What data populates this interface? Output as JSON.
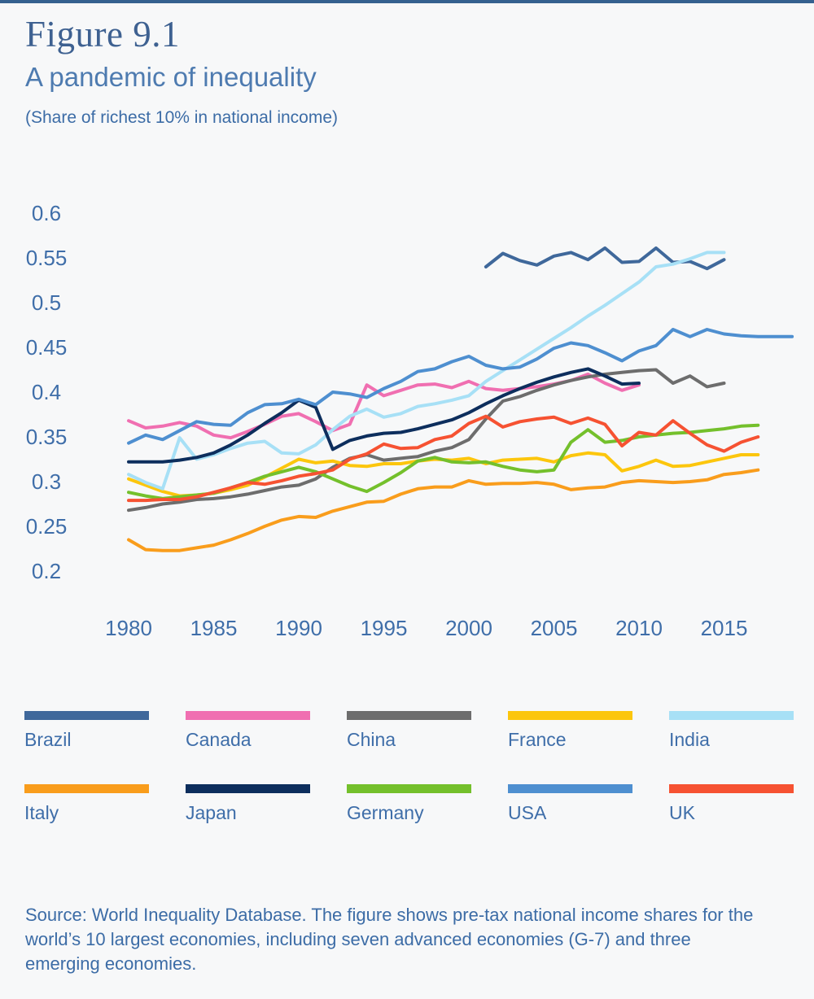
{
  "page": {
    "figure_label": "Figure 9.1",
    "title": "A pandemic of inequality",
    "subtitle": "(Share of richest 10% in national income)",
    "source_note": "Source: World Inequality Database. The figure shows pre-tax national income shares for the world’s 10 largest economies, including seven advanced economies (G-7) and three emerging economies.",
    "colors": {
      "accent_bar": "#35618f",
      "figure_label_text": "#3e6191",
      "title_text": "#4e7bb0",
      "body_text": "#3c6ca6",
      "background": "#f7f8f9"
    }
  },
  "chart_data": {
    "type": "line",
    "title": "A pandemic of inequality",
    "subtitle": "(Share of richest 10% in national income)",
    "xlabel": "",
    "ylabel": "",
    "x_ticks": [
      1980,
      1985,
      1990,
      1995,
      2000,
      2005,
      2010,
      2015
    ],
    "y_ticks": [
      0.2,
      0.25,
      0.3,
      0.35,
      0.4,
      0.45,
      0.5,
      0.55,
      0.6
    ],
    "xlim": [
      1978,
      2020
    ],
    "ylim": [
      0.2,
      0.6
    ],
    "grid": false,
    "legend_position": "bottom",
    "legend_columns": 5,
    "series": [
      {
        "name": "Brazil",
        "color": "#3f689b",
        "start_year": 2001,
        "values": [
          0.54,
          0.555,
          0.547,
          0.542,
          0.552,
          0.556,
          0.548,
          0.561,
          0.545,
          0.546,
          0.561,
          0.545,
          0.546,
          0.538,
          0.548
        ]
      },
      {
        "name": "Canada",
        "color": "#f06fb1",
        "start_year": 1980,
        "values": [
          0.368,
          0.36,
          0.362,
          0.366,
          0.362,
          0.352,
          0.349,
          0.356,
          0.364,
          0.373,
          0.376,
          0.367,
          0.357,
          0.364,
          0.408,
          0.396,
          0.402,
          0.408,
          0.409,
          0.405,
          0.412,
          0.404,
          0.402,
          0.404,
          0.406,
          0.409,
          0.413,
          0.42,
          0.41,
          0.402,
          0.408
        ]
      },
      {
        "name": "China",
        "color": "#6d6d6d",
        "start_year": 1980,
        "values": [
          0.268,
          0.271,
          0.275,
          0.277,
          0.28,
          0.281,
          0.283,
          0.286,
          0.29,
          0.294,
          0.296,
          0.303,
          0.316,
          0.326,
          0.33,
          0.324,
          0.326,
          0.328,
          0.334,
          0.338,
          0.347,
          0.37,
          0.39,
          0.395,
          0.402,
          0.408,
          0.413,
          0.417,
          0.42,
          0.422,
          0.424,
          0.425,
          0.41,
          0.418,
          0.406,
          0.41
        ]
      },
      {
        "name": "France",
        "color": "#fcc60d",
        "start_year": 1980,
        "values": [
          0.303,
          0.296,
          0.289,
          0.284,
          0.285,
          0.287,
          0.291,
          0.296,
          0.305,
          0.315,
          0.325,
          0.321,
          0.323,
          0.318,
          0.317,
          0.32,
          0.32,
          0.323,
          0.325,
          0.324,
          0.326,
          0.32,
          0.324,
          0.325,
          0.326,
          0.322,
          0.329,
          0.332,
          0.33,
          0.312,
          0.317,
          0.324,
          0.317,
          0.318,
          0.322,
          0.326,
          0.33,
          0.33
        ]
      },
      {
        "name": "India",
        "color": "#a7e0f6",
        "start_year": 1980,
        "values": [
          0.308,
          0.299,
          0.292,
          0.349,
          0.325,
          0.33,
          0.337,
          0.343,
          0.345,
          0.332,
          0.331,
          0.341,
          0.358,
          0.373,
          0.381,
          0.372,
          0.376,
          0.384,
          0.387,
          0.391,
          0.396,
          0.412,
          0.424,
          0.436,
          0.448,
          0.46,
          0.472,
          0.485,
          0.497,
          0.51,
          0.523,
          0.54,
          0.543,
          0.549,
          0.556,
          0.556
        ]
      },
      {
        "name": "Italy",
        "color": "#f99d1c",
        "start_year": 1980,
        "values": [
          0.235,
          0.224,
          0.223,
          0.223,
          0.226,
          0.229,
          0.235,
          0.242,
          0.25,
          0.257,
          0.261,
          0.26,
          0.267,
          0.272,
          0.277,
          0.278,
          0.286,
          0.292,
          0.294,
          0.294,
          0.301,
          0.297,
          0.298,
          0.298,
          0.299,
          0.297,
          0.291,
          0.293,
          0.294,
          0.299,
          0.301,
          0.3,
          0.299,
          0.3,
          0.302,
          0.308,
          0.31,
          0.313
        ]
      },
      {
        "name": "Japan",
        "color": "#0d2e5d",
        "start_year": 1980,
        "values": [
          0.322,
          0.322,
          0.322,
          0.324,
          0.327,
          0.332,
          0.341,
          0.352,
          0.365,
          0.377,
          0.391,
          0.383,
          0.336,
          0.346,
          0.351,
          0.354,
          0.355,
          0.359,
          0.364,
          0.369,
          0.377,
          0.387,
          0.396,
          0.404,
          0.411,
          0.417,
          0.422,
          0.426,
          0.418,
          0.409,
          0.41
        ]
      },
      {
        "name": "Germany",
        "color": "#74c02c",
        "start_year": 1980,
        "values": [
          0.288,
          0.284,
          0.281,
          0.283,
          0.285,
          0.287,
          0.293,
          0.299,
          0.306,
          0.311,
          0.316,
          0.311,
          0.303,
          0.295,
          0.289,
          0.299,
          0.31,
          0.323,
          0.327,
          0.322,
          0.321,
          0.322,
          0.317,
          0.313,
          0.311,
          0.313,
          0.344,
          0.358,
          0.344,
          0.346,
          0.35,
          0.352,
          0.354,
          0.355,
          0.357,
          0.359,
          0.362,
          0.363
        ]
      },
      {
        "name": "USA",
        "color": "#4e8fd0",
        "start_year": 1980,
        "values": [
          0.343,
          0.352,
          0.347,
          0.357,
          0.367,
          0.364,
          0.363,
          0.377,
          0.386,
          0.387,
          0.392,
          0.386,
          0.4,
          0.398,
          0.394,
          0.404,
          0.412,
          0.423,
          0.426,
          0.434,
          0.44,
          0.43,
          0.426,
          0.428,
          0.437,
          0.449,
          0.455,
          0.452,
          0.444,
          0.435,
          0.446,
          0.452,
          0.47,
          0.462,
          0.47,
          0.465,
          0.463,
          0.462,
          0.462,
          0.462
        ]
      },
      {
        "name": "UK",
        "color": "#f65232",
        "start_year": 1980,
        "values": [
          0.279,
          0.279,
          0.28,
          0.28,
          0.283,
          0.288,
          0.293,
          0.299,
          0.297,
          0.301,
          0.306,
          0.309,
          0.313,
          0.325,
          0.331,
          0.342,
          0.337,
          0.338,
          0.347,
          0.351,
          0.365,
          0.373,
          0.361,
          0.367,
          0.37,
          0.372,
          0.365,
          0.371,
          0.364,
          0.34,
          0.355,
          0.352,
          0.368,
          0.354,
          0.341,
          0.334,
          0.344,
          0.35
        ]
      }
    ]
  }
}
